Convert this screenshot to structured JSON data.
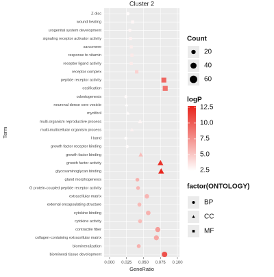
{
  "chart_data": {
    "type": "scatter",
    "title": "Cluster 2",
    "x_label": "GeneRatio",
    "y_label": "Term",
    "categories": [
      "Z disc",
      "wound healing",
      "urogenital system development",
      "signaling receptor activator activity",
      "sarcomere",
      "response to vitamin",
      "receptor ligand activity",
      "receptor complex",
      "peptide receptor activity",
      "ossification",
      "odontogenesis",
      "neuronal dense core vesicle",
      "myofibril",
      "multi-organism reproductive process",
      "multi-multicellular organism process",
      "I band",
      "growth factor receptor binding",
      "growth factor binding",
      "growth factor activity",
      "glycosaminoglycan binding",
      "gland morphogenesis",
      "G protein-coupled peptide receptor activity",
      "extracellular matrix",
      "external encapsulating structure",
      "cytokine binding",
      "cytokine activity",
      "contractile fiber",
      "collagen-containing extracellular matrix",
      "biomineralization",
      "biomineral tissue development"
    ],
    "x": [
      0.027,
      0.034,
      0.03,
      0.031,
      0.032,
      0.033,
      0.032,
      0.04,
      0.08,
      0.082,
      0.024,
      0.025,
      0.027,
      0.045,
      0.033,
      0.024,
      0.026,
      0.046,
      0.075,
      0.076,
      0.041,
      0.042,
      0.055,
      0.044,
      0.057,
      0.045,
      0.071,
      0.069,
      0.043,
      0.081
    ],
    "logP": [
      2.6,
      2.8,
      2.8,
      3.0,
      3.2,
      3.4,
      3.3,
      4.5,
      9.5,
      9.0,
      2.6,
      2.5,
      2.6,
      2.8,
      3.0,
      2.5,
      2.6,
      5.5,
      12.0,
      12.5,
      6.0,
      5.8,
      5.8,
      5.6,
      6.0,
      5.5,
      7.0,
      6.5,
      6.0,
      10.5
    ],
    "count": [
      12,
      13,
      12,
      12,
      12,
      13,
      12,
      16,
      32,
      33,
      10,
      10,
      11,
      18,
      13,
      10,
      10,
      18,
      30,
      30,
      16,
      16,
      22,
      17,
      23,
      18,
      28,
      27,
      17,
      33
    ],
    "ontology": [
      "BP",
      "MF",
      "BP",
      "MF",
      "MF",
      "MF",
      "MF",
      "MF",
      "MF",
      "MF",
      "BP",
      "CC",
      "CC",
      "CC",
      "CC",
      "BP",
      "BP",
      "CC",
      "CC",
      "CC",
      "BP",
      "BP",
      "BP",
      "BP",
      "BP",
      "BP",
      "BP",
      "BP",
      "BP",
      "BP"
    ],
    "xlim": [
      -0.008,
      0.103
    ],
    "xticks": [
      {
        "value": 0,
        "label": "0.000"
      },
      {
        "value": 0.025,
        "label": "0.025"
      },
      {
        "value": 0.05,
        "label": "0.050"
      },
      {
        "value": 0.075,
        "label": "0.075"
      },
      {
        "value": 0.1,
        "label": "0.100"
      }
    ],
    "size_legend": {
      "title": "Count",
      "values": [
        20,
        40,
        60
      ]
    },
    "color_legend": {
      "title": "logP",
      "lim": [
        2.4,
        12.7
      ],
      "low": "#ffffff",
      "high": "#e8231b",
      "ticks": [
        12.5,
        {
          "value": 10,
          "label": "10.0"
        },
        7.5,
        {
          "value": 5,
          "label": "5.0"
        },
        2.5
      ]
    },
    "shape_legend": {
      "title": "factor(ONTOLOGY)",
      "labels": [
        "BP",
        "CC",
        "MF"
      ]
    },
    "grid": true
  }
}
